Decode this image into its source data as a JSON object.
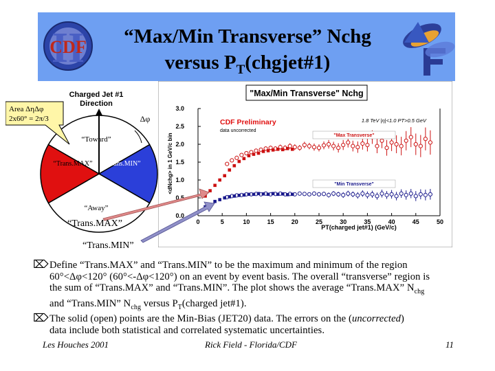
{
  "slide": {
    "title_line1": "“Max/Min Transverse” Nchg",
    "title_line2a": "versus P",
    "title_line2_sub": "T",
    "title_line2b": "(chgjet#1)",
    "cdf_logo_text": "CDF",
    "cdf_logo_numeral": "II"
  },
  "diagram": {
    "heading_line1": "Charged Jet #1",
    "heading_line2": "Direction",
    "area_line1": "Area  ΔηΔφ",
    "area_line2": "2x60° = 2π/3",
    "delta_phi": "Δφ",
    "toward": "“Toward”",
    "away": "“Away”",
    "trans_max": "“Trans.MAX”",
    "trans_min": "“Trans.MIN”"
  },
  "callouts": {
    "trans_max": "“Trans.MAX”",
    "trans_min": "“Trans.MIN”"
  },
  "chart_data": {
    "type": "scatter",
    "title": "\"Max/Min Transverse\" Nchg",
    "subtitle": "CDF Preliminary",
    "note": "data uncorrected",
    "condition": "1.8 TeV |η|<1.0 PT>0.5 GeV",
    "xlabel": "PT(charged jet#1)  (GeV/c)",
    "ylabel": "<dNchg> in 1 GeV/c bin",
    "xlim": [
      0,
      50
    ],
    "ylim": [
      0,
      3.0
    ],
    "xticks": [
      "0",
      "5",
      "10",
      "15",
      "20",
      "25",
      "30",
      "35",
      "40",
      "45",
      "50"
    ],
    "yticks": [
      "0.0",
      "0.5",
      "1.0",
      "1.5",
      "2.0",
      "2.5",
      "3.0"
    ],
    "series": [
      {
        "name": "\"Max Transverse\"",
        "color": "#cc1111",
        "solid_x": [
          1.5,
          2.5,
          3.5,
          4.5,
          5.5,
          6.5,
          7.5,
          8.5,
          9.5,
          10.5,
          11.5,
          12.5,
          13.5,
          14.5,
          15.5,
          16.5,
          17.5,
          18.5,
          19.5
        ],
        "solid_y": [
          0.55,
          0.7,
          0.85,
          1.0,
          1.12,
          1.28,
          1.4,
          1.52,
          1.6,
          1.68,
          1.72,
          1.75,
          1.8,
          1.82,
          1.84,
          1.86,
          1.85,
          1.88,
          1.86
        ],
        "open_x": [
          6,
          7,
          8,
          9,
          10,
          11,
          12,
          13,
          14,
          15,
          16,
          17,
          18,
          19,
          20,
          21,
          22,
          23,
          24,
          25,
          26,
          27,
          28,
          29,
          30,
          31,
          32,
          33,
          34,
          35,
          36,
          37,
          38,
          39,
          40,
          41,
          42,
          43,
          44,
          45,
          46,
          47,
          48
        ],
        "open_y": [
          1.45,
          1.55,
          1.62,
          1.7,
          1.75,
          1.78,
          1.82,
          1.85,
          1.88,
          1.9,
          1.88,
          1.92,
          1.9,
          1.95,
          1.92,
          1.9,
          1.98,
          1.95,
          1.92,
          1.9,
          1.97,
          2.0,
          1.95,
          1.9,
          1.98,
          2.05,
          1.95,
          1.92,
          2.02,
          1.98,
          2.2,
          1.95,
          2.1,
          1.9,
          2.05,
          2.0,
          1.95,
          2.1,
          2.2,
          2.0,
          1.95,
          2.15,
          2.05
        ],
        "err": [
          0.04,
          0.04,
          0.04,
          0.04,
          0.05,
          0.05,
          0.05,
          0.05,
          0.06,
          0.06,
          0.06,
          0.07,
          0.07,
          0.08,
          0.08,
          0.08,
          0.09,
          0.09,
          0.1,
          0.1,
          0.11,
          0.12,
          0.12,
          0.13,
          0.14,
          0.14,
          0.15,
          0.16,
          0.17,
          0.18,
          0.19,
          0.2,
          0.21,
          0.22,
          0.24,
          0.25,
          0.26,
          0.27,
          0.28,
          0.3,
          0.31,
          0.32,
          0.34
        ]
      },
      {
        "name": "\"Min Transverse\"",
        "color": "#1a1a8c",
        "solid_x": [
          1.5,
          2.5,
          3.5,
          4.5,
          5.5,
          6.5,
          7.5,
          8.5,
          9.5,
          10.5,
          11.5,
          12.5,
          13.5,
          14.5,
          15.5,
          16.5,
          17.5,
          18.5,
          19.5
        ],
        "solid_y": [
          0.25,
          0.32,
          0.4,
          0.45,
          0.5,
          0.53,
          0.55,
          0.57,
          0.58,
          0.6,
          0.6,
          0.62,
          0.61,
          0.6,
          0.62,
          0.6,
          0.61,
          0.59,
          0.6
        ],
        "open_x": [
          6,
          7,
          8,
          9,
          10,
          11,
          12,
          13,
          14,
          15,
          16,
          17,
          18,
          19,
          20,
          21,
          22,
          23,
          24,
          25,
          26,
          27,
          28,
          29,
          30,
          31,
          32,
          33,
          34,
          35,
          36,
          37,
          38,
          39,
          40,
          41,
          42,
          43,
          44,
          45,
          46,
          47,
          48
        ],
        "open_y": [
          0.52,
          0.55,
          0.57,
          0.58,
          0.6,
          0.6,
          0.61,
          0.6,
          0.62,
          0.6,
          0.61,
          0.62,
          0.6,
          0.61,
          0.6,
          0.62,
          0.61,
          0.6,
          0.62,
          0.6,
          0.61,
          0.58,
          0.62,
          0.6,
          0.58,
          0.62,
          0.6,
          0.57,
          0.62,
          0.58,
          0.6,
          0.55,
          0.62,
          0.58,
          0.6,
          0.55,
          0.62,
          0.58,
          0.62,
          0.55,
          0.6,
          0.58,
          0.6
        ],
        "err": [
          0.02,
          0.02,
          0.02,
          0.02,
          0.03,
          0.03,
          0.03,
          0.03,
          0.03,
          0.03,
          0.04,
          0.04,
          0.04,
          0.04,
          0.05,
          0.05,
          0.05,
          0.05,
          0.06,
          0.06,
          0.06,
          0.07,
          0.07,
          0.07,
          0.08,
          0.08,
          0.08,
          0.09,
          0.09,
          0.1,
          0.1,
          0.1,
          0.11,
          0.11,
          0.12,
          0.12,
          0.12,
          0.13,
          0.13,
          0.14,
          0.14,
          0.15,
          0.15
        ]
      }
    ]
  },
  "bullets": [
    {
      "line1": "Define “Trans.MAX” and “Trans.MIN” to be the maximum and minimum of the region",
      "line2": "60°<Δφ<120° (60°<-Δφ<120°) on an event by event basis. The overall “transverse” region is",
      "line3a": "the sum of “Trans.MAX” and “Trans.MIN”. The plot shows the average “Trans.MAX” N",
      "line3_sub": "chg",
      "line4a": "and “Trans.MIN” N",
      "line4_sub": "chg",
      "line4b": " versus P",
      "line4_sub2": "T",
      "line4c": "(charged jet#1)."
    },
    {
      "line1": "The solid (open) points are the Min-Bias (JET20) data. The errors on the (",
      "line1_italic": "uncorrected",
      "line1_end": ")",
      "line2": "data include both statistical and correlated systematic uncertainties."
    }
  ],
  "footer": {
    "left": "Les Houches 2001",
    "center": "Rick Field - Florida/CDF",
    "page": "11"
  }
}
